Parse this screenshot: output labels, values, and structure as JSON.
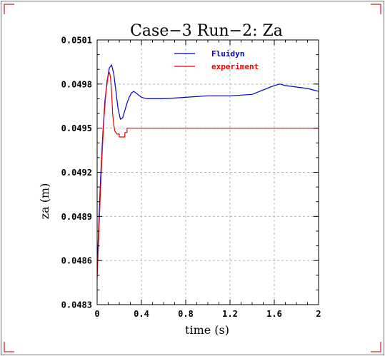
{
  "chart_data": {
    "type": "line",
    "title": "Case−3 Run−2: Za",
    "xlabel": "time (s)",
    "ylabel": "za (m)",
    "xlim": [
      0,
      2
    ],
    "ylim": [
      0.0483,
      0.0501
    ],
    "x_ticks": [
      "0",
      "0.4",
      "0.8",
      "1.2",
      "1.6",
      "2"
    ],
    "y_ticks": [
      "0.0483",
      "0.0486",
      "0.0489",
      "0.0492",
      "0.0495",
      "0.0498",
      "0.0501"
    ],
    "grid": true,
    "legend_placement": "top-right",
    "series": [
      {
        "name": "Fluidyn",
        "color": "#0000cc",
        "x": [
          0,
          0.01,
          0.02,
          0.03,
          0.05,
          0.07,
          0.09,
          0.11,
          0.13,
          0.15,
          0.17,
          0.19,
          0.21,
          0.23,
          0.25,
          0.27,
          0.29,
          0.31,
          0.33,
          0.35,
          0.4,
          0.45,
          0.5,
          0.6,
          0.8,
          1.0,
          1.2,
          1.4,
          1.5,
          1.6,
          1.65,
          1.7,
          1.8,
          1.9,
          2.0
        ],
        "y": [
          0.04855,
          0.04875,
          0.04895,
          0.04915,
          0.04945,
          0.04968,
          0.04982,
          0.04991,
          0.04993,
          0.04987,
          0.04975,
          0.04963,
          0.04956,
          0.04957,
          0.04962,
          0.04967,
          0.04971,
          0.04974,
          0.04975,
          0.04974,
          0.04971,
          0.0497,
          0.0497,
          0.0497,
          0.04971,
          0.04972,
          0.04972,
          0.04973,
          0.04976,
          0.04979,
          0.0498,
          0.04979,
          0.04978,
          0.04977,
          0.04975
        ]
      },
      {
        "name": "experiment",
        "color": "#ee0000",
        "x": [
          0,
          0.01,
          0.02,
          0.04,
          0.06,
          0.08,
          0.1,
          0.11,
          0.12,
          0.13,
          0.14,
          0.15,
          0.16,
          0.18,
          0.2,
          0.2,
          0.25,
          0.25,
          0.27,
          0.27,
          0.3,
          0.5,
          1.0,
          1.5,
          2.0
        ],
        "y": [
          0.04848,
          0.04868,
          0.04888,
          0.04925,
          0.04955,
          0.04975,
          0.04986,
          0.04988,
          0.04985,
          0.04975,
          0.0496,
          0.04952,
          0.04948,
          0.04946,
          0.04946,
          0.04944,
          0.04944,
          0.04947,
          0.04947,
          0.0495,
          0.0495,
          0.0495,
          0.0495,
          0.0495,
          0.0495
        ]
      }
    ]
  }
}
